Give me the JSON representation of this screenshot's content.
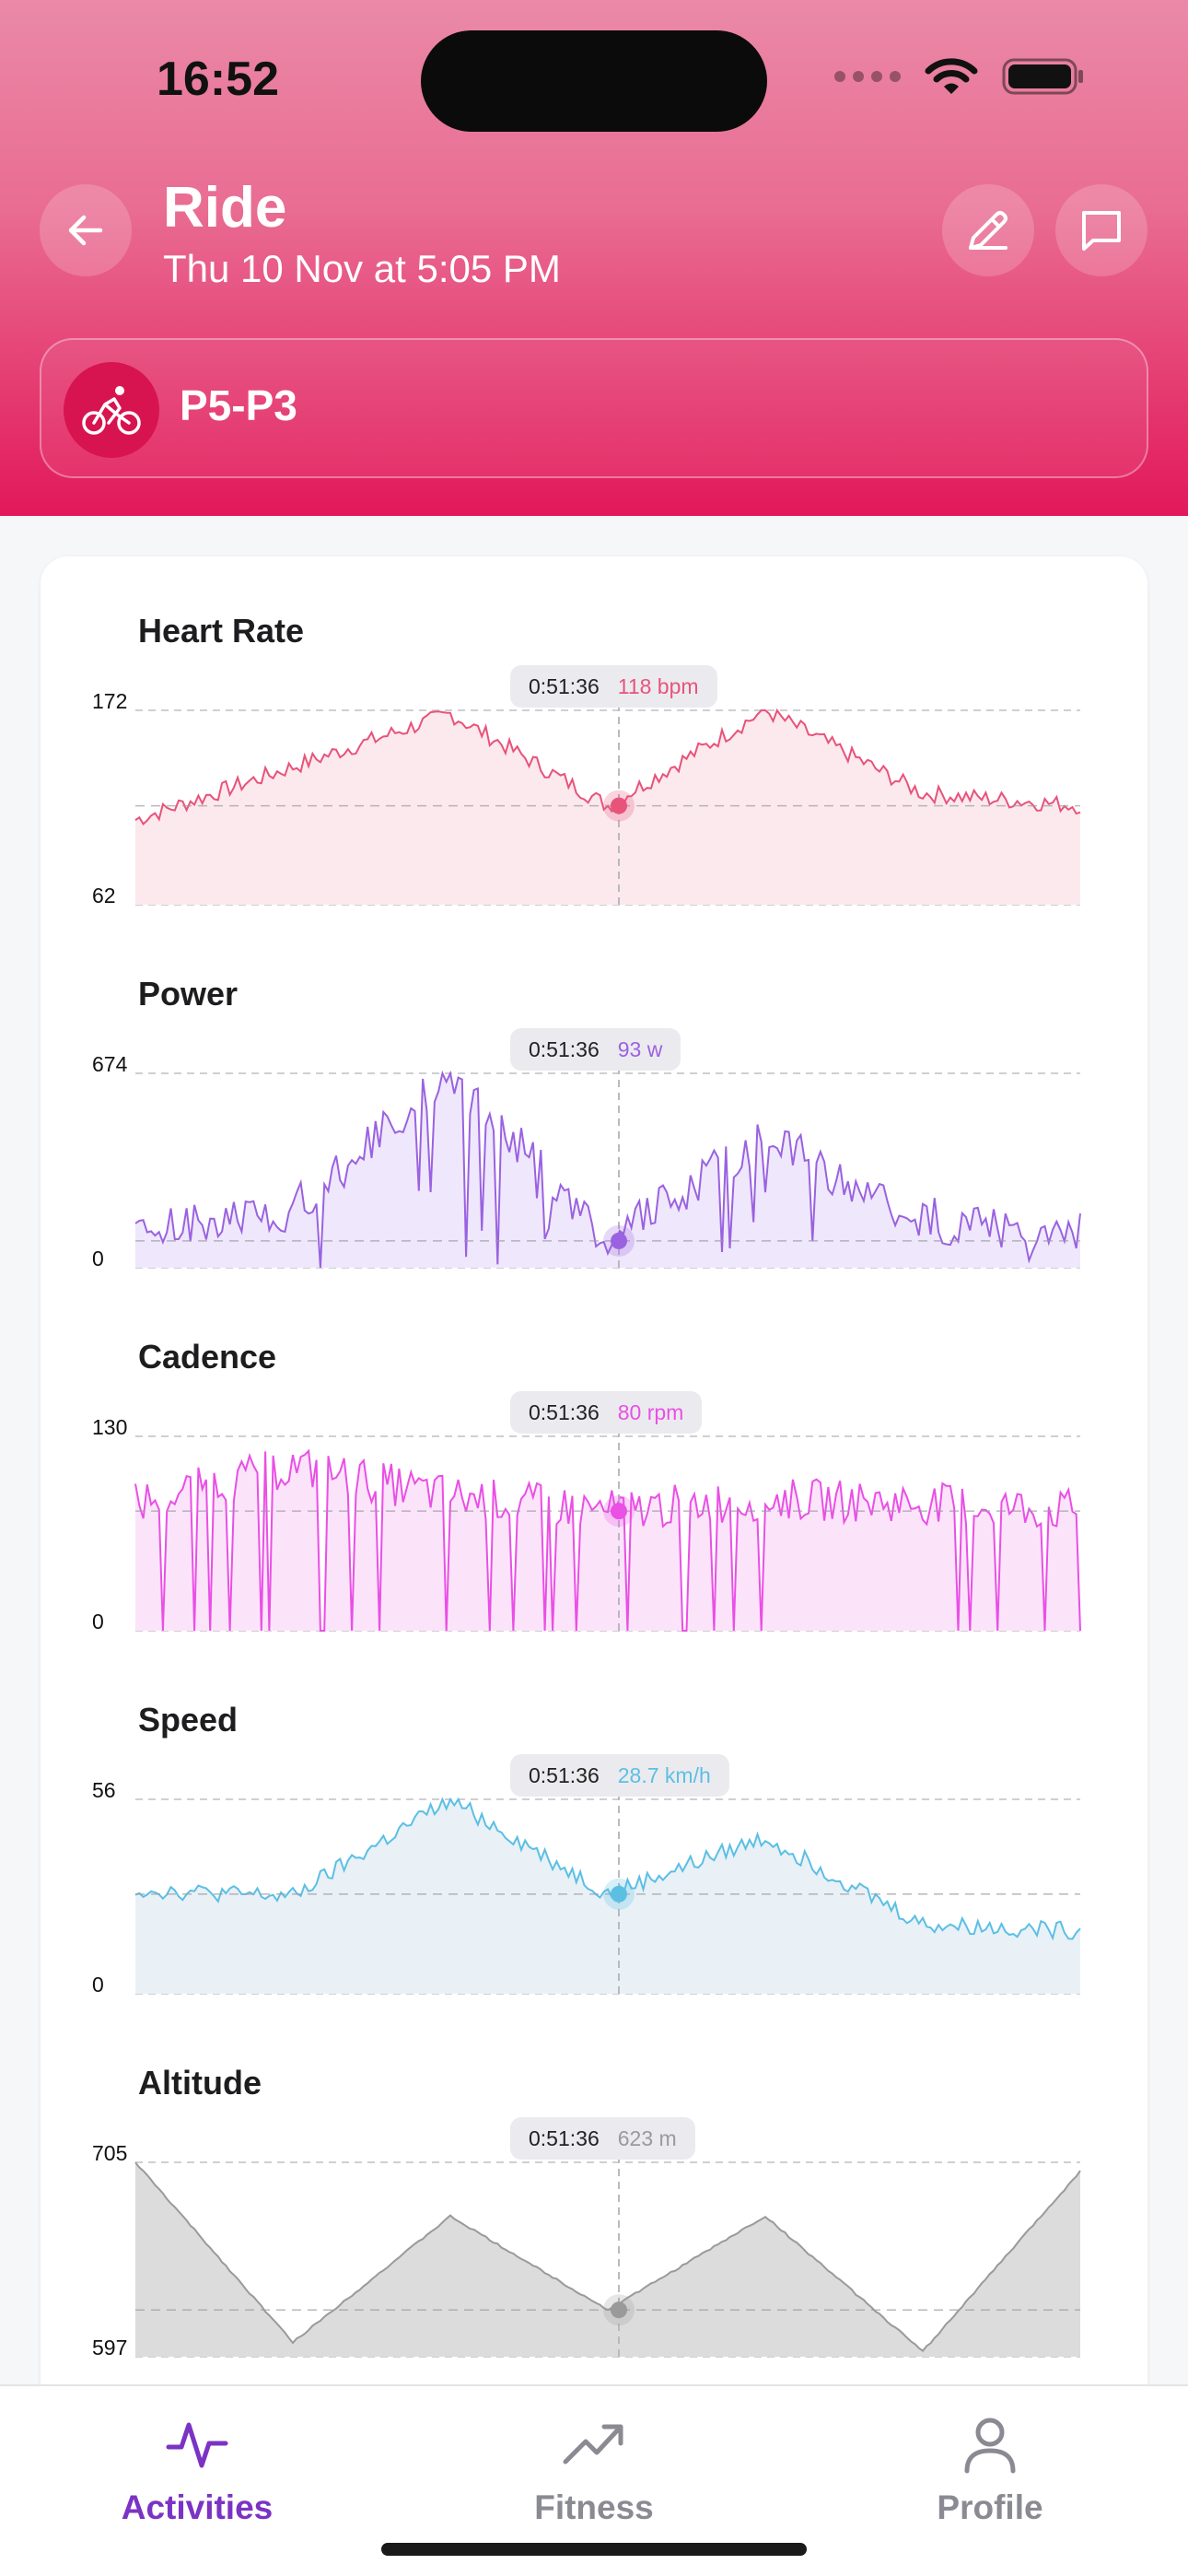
{
  "status_bar": {
    "time": "16:52"
  },
  "header": {
    "title": "Ride",
    "subtitle": "Thu 10 Nov at 5:05 PM",
    "gear_name": "P5-P3"
  },
  "charts": [
    {
      "key": "hr",
      "title": "Heart Rate",
      "max_label": "172",
      "min_label": "62",
      "tooltip_time": "0:51:36",
      "tooltip_value": "118 bpm",
      "color": "#e8537a",
      "fill": "#fbe9ee"
    },
    {
      "key": "power",
      "title": "Power",
      "max_label": "674",
      "min_label": "0",
      "tooltip_time": "0:51:36",
      "tooltip_value": "93 w",
      "color": "#9a62e0",
      "fill": "#efe7fb"
    },
    {
      "key": "cadence",
      "title": "Cadence",
      "max_label": "130",
      "min_label": "0",
      "tooltip_time": "0:51:36",
      "tooltip_value": "80 rpm",
      "color": "#ea4fe6",
      "fill": "#fbe4fa"
    },
    {
      "key": "speed",
      "title": "Speed",
      "max_label": "56",
      "min_label": "0",
      "tooltip_time": "0:51:36",
      "tooltip_value": "28.7 km/h",
      "color": "#5bbfe4",
      "fill": "#e9f1f6"
    },
    {
      "key": "altitude",
      "title": "Altitude",
      "max_label": "705",
      "min_label": "597",
      "tooltip_time": "0:51:36",
      "tooltip_value": "623 m",
      "color": "#9a9a9a",
      "fill": "#dcdcdc"
    }
  ],
  "chart_data": [
    {
      "type": "area",
      "title": "Heart Rate",
      "ylim": [
        62,
        172
      ],
      "x": [
        "0:00",
        "0:25",
        "0:40",
        "0:51:36",
        "1:10",
        "1:30",
        "1:45"
      ],
      "series": [
        {
          "name": "Heart Rate",
          "values": [
            110,
            140,
            170,
            118,
            172,
            125,
            118
          ]
        }
      ]
    },
    {
      "type": "area",
      "title": "Power",
      "ylim": [
        0,
        674
      ],
      "x": [
        "0:00",
        "0:25",
        "0:40",
        "0:51:36",
        "1:10",
        "1:30",
        "1:45"
      ],
      "series": [
        {
          "name": "Power",
          "values": [
            120,
            200,
            674,
            93,
            460,
            150,
            120
          ]
        }
      ]
    },
    {
      "type": "area",
      "title": "Cadence",
      "ylim": [
        0,
        130
      ],
      "x": [
        "0:00",
        "0:25",
        "0:40",
        "0:51:36",
        "1:10",
        "1:30",
        "1:45"
      ],
      "series": [
        {
          "name": "Cadence",
          "values": [
            85,
            110,
            90,
            80,
            88,
            85,
            80
          ]
        }
      ]
    },
    {
      "type": "area",
      "title": "Speed",
      "ylim": [
        0,
        56
      ],
      "x": [
        "0:00",
        "0:25",
        "0:40",
        "0:51:36",
        "1:10",
        "1:30",
        "1:45"
      ],
      "series": [
        {
          "name": "Speed",
          "values": [
            30,
            28,
            56,
            28.7,
            45,
            20,
            18
          ]
        }
      ]
    },
    {
      "type": "area",
      "title": "Altitude",
      "ylim": [
        597,
        705
      ],
      "x": [
        "0:00",
        "0:25",
        "0:40",
        "0:51:36",
        "1:10",
        "1:30",
        "1:45"
      ],
      "series": [
        {
          "name": "Altitude",
          "values": [
            705,
            605,
            675,
            623,
            675,
            600,
            700
          ]
        }
      ]
    }
  ],
  "tabs": [
    {
      "label": "Activities",
      "active": true
    },
    {
      "label": "Fitness",
      "active": false
    },
    {
      "label": "Profile",
      "active": false
    }
  ],
  "colors": {
    "accent": "#7b33c4",
    "inactive": "#8a8a92",
    "header_top": "#ea89a8",
    "header_bottom": "#e2185a"
  },
  "icons": [
    "back-arrow-icon",
    "edit-pencil-icon",
    "comment-icon",
    "bicycle-icon",
    "activities-icon",
    "fitness-trend-icon",
    "profile-icon",
    "wifi-icon",
    "battery-icon"
  ]
}
